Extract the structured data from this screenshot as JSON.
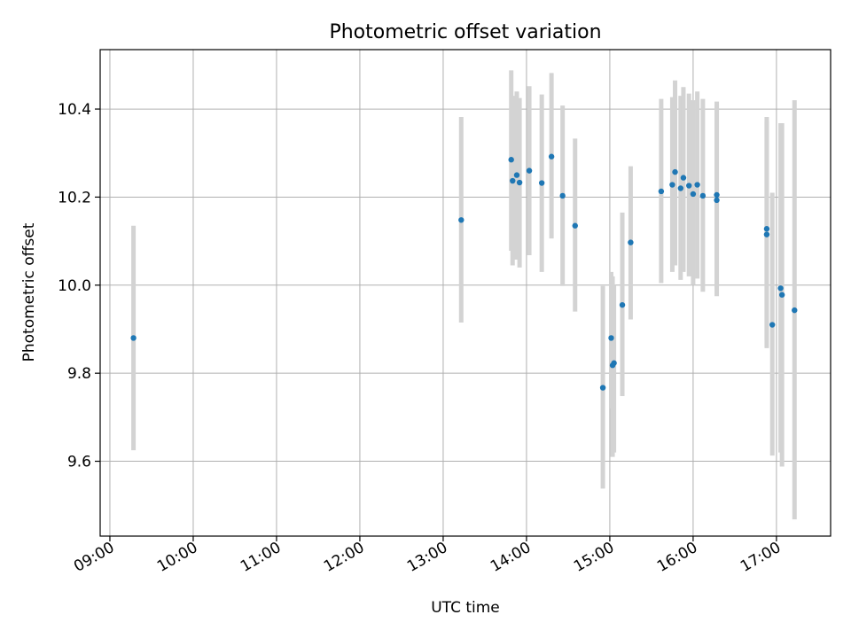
{
  "chart_data": {
    "type": "scatter",
    "title": "Photometric offset variation",
    "xlabel": "UTC time",
    "ylabel": "Photometric offset",
    "x_ticks": [
      "09:00",
      "10:00",
      "11:00",
      "12:00",
      "13:00",
      "14:00",
      "15:00",
      "16:00",
      "17:00"
    ],
    "y_ticks": [
      "9.6",
      "9.8",
      "10.0",
      "10.2",
      "10.4"
    ],
    "xlim": [
      "08:53",
      "17:39"
    ],
    "ylim": [
      9.43,
      10.535
    ],
    "grid": true,
    "colors": {
      "point": "#1f77b4",
      "errorbar": "#d3d3d3",
      "grid": "#b0b0b0"
    },
    "points": [
      {
        "x": "09:17",
        "y": 9.88,
        "yerr_low": 9.625,
        "yerr_high": 10.135
      },
      {
        "x": "13:13",
        "y": 10.148,
        "yerr_low": 9.915,
        "yerr_high": 10.382
      },
      {
        "x": "13:49",
        "y": 10.285,
        "yerr_low": 10.078,
        "yerr_high": 10.488
      },
      {
        "x": "13:50",
        "y": 10.237,
        "yerr_low": 10.045,
        "yerr_high": 10.43
      },
      {
        "x": "13:53",
        "y": 10.25,
        "yerr_low": 10.058,
        "yerr_high": 10.44
      },
      {
        "x": "13:55",
        "y": 10.233,
        "yerr_low": 10.04,
        "yerr_high": 10.425
      },
      {
        "x": "14:02",
        "y": 10.26,
        "yerr_low": 10.068,
        "yerr_high": 10.452
      },
      {
        "x": "14:11",
        "y": 10.232,
        "yerr_low": 10.03,
        "yerr_high": 10.433
      },
      {
        "x": "14:18",
        "y": 10.292,
        "yerr_low": 10.106,
        "yerr_high": 10.482
      },
      {
        "x": "14:26",
        "y": 10.203,
        "yerr_low": 9.998,
        "yerr_high": 10.408
      },
      {
        "x": "14:35",
        "y": 10.135,
        "yerr_low": 9.94,
        "yerr_high": 10.333
      },
      {
        "x": "14:55",
        "y": 9.767,
        "yerr_low": 9.538,
        "yerr_high": 9.998
      },
      {
        "x": "15:01",
        "y": 9.88,
        "yerr_low": 9.72,
        "yerr_high": 10.03
      },
      {
        "x": "15:02",
        "y": 9.818,
        "yerr_low": 9.61,
        "yerr_high": 10.02
      },
      {
        "x": "15:03",
        "y": 9.823,
        "yerr_low": 9.62,
        "yerr_high": 10.0
      },
      {
        "x": "15:09",
        "y": 9.955,
        "yerr_low": 9.748,
        "yerr_high": 10.165
      },
      {
        "x": "15:15",
        "y": 10.097,
        "yerr_low": 9.922,
        "yerr_high": 10.27
      },
      {
        "x": "15:37",
        "y": 10.213,
        "yerr_low": 10.005,
        "yerr_high": 10.423
      },
      {
        "x": "15:45",
        "y": 10.228,
        "yerr_low": 10.03,
        "yerr_high": 10.427
      },
      {
        "x": "15:47",
        "y": 10.257,
        "yerr_low": 10.045,
        "yerr_high": 10.465
      },
      {
        "x": "15:51",
        "y": 10.22,
        "yerr_low": 10.012,
        "yerr_high": 10.43
      },
      {
        "x": "15:53",
        "y": 10.244,
        "yerr_low": 10.03,
        "yerr_high": 10.45
      },
      {
        "x": "15:57",
        "y": 10.226,
        "yerr_low": 10.02,
        "yerr_high": 10.435
      },
      {
        "x": "16:00",
        "y": 10.207,
        "yerr_low": 10.0,
        "yerr_high": 10.42
      },
      {
        "x": "16:03",
        "y": 10.228,
        "yerr_low": 10.015,
        "yerr_high": 10.44
      },
      {
        "x": "16:07",
        "y": 10.203,
        "yerr_low": 9.985,
        "yerr_high": 10.423
      },
      {
        "x": "16:17",
        "y": 10.205,
        "yerr_low": 9.99,
        "yerr_high": 10.417
      },
      {
        "x": "16:17",
        "y": 10.193,
        "yerr_low": 9.975,
        "yerr_high": 10.41
      },
      {
        "x": "16:53",
        "y": 10.128,
        "yerr_low": 9.875,
        "yerr_high": 10.382
      },
      {
        "x": "16:53",
        "y": 10.115,
        "yerr_low": 9.857,
        "yerr_high": 10.372
      },
      {
        "x": "16:57",
        "y": 9.91,
        "yerr_low": 9.613,
        "yerr_high": 10.21
      },
      {
        "x": "17:03",
        "y": 9.993,
        "yerr_low": 9.62,
        "yerr_high": 10.368
      },
      {
        "x": "17:04",
        "y": 9.978,
        "yerr_low": 9.588,
        "yerr_high": 10.368
      },
      {
        "x": "17:13",
        "y": 9.943,
        "yerr_low": 9.468,
        "yerr_high": 10.42
      }
    ]
  }
}
